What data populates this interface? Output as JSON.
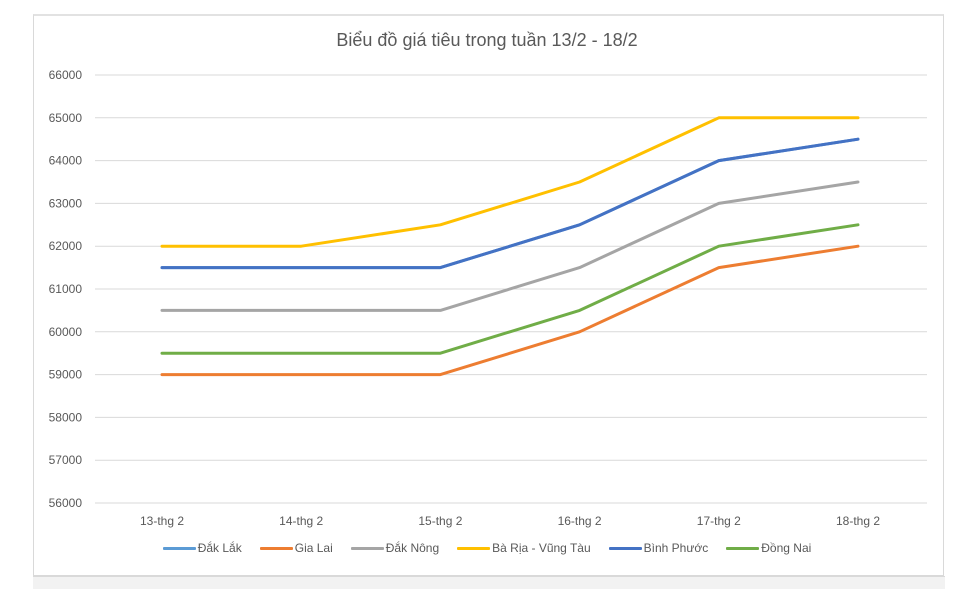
{
  "chart_data": {
    "type": "line",
    "title": "Biểu đồ giá tiêu trong tuần 13/2 - 18/2",
    "xlabel": "",
    "ylabel": "",
    "categories": [
      "13-thg 2",
      "14-thg 2",
      "15-thg 2",
      "16-thg 2",
      "17-thg 2",
      "18-thg 2"
    ],
    "ylim": [
      56000,
      66000
    ],
    "yticks": [
      66000,
      65000,
      64000,
      63000,
      62000,
      61000,
      60000,
      59000,
      58000,
      57000,
      56000
    ],
    "grid": true,
    "legend_position": "bottom",
    "series": [
      {
        "name": "Đắk Lắk",
        "color": "#5b9bd5",
        "values": [
          61500,
          61500,
          61500,
          62500,
          64000,
          64500
        ]
      },
      {
        "name": "Gia Lai",
        "color": "#ed7d31",
        "values": [
          59000,
          59000,
          59000,
          60000,
          61500,
          62000
        ]
      },
      {
        "name": "Đắk Nông",
        "color": "#a5a5a5",
        "values": [
          60500,
          60500,
          60500,
          61500,
          63000,
          63500
        ]
      },
      {
        "name": "Bà Rịa - Vũng Tàu",
        "color": "#ffc000",
        "values": [
          62000,
          62000,
          62500,
          63500,
          65000,
          65000
        ]
      },
      {
        "name": "Bình Phước",
        "color": "#4472c4",
        "values": [
          61500,
          61500,
          61500,
          62500,
          64000,
          64500
        ]
      },
      {
        "name": "Đồng Nai",
        "color": "#70ad47",
        "values": [
          59500,
          59500,
          59500,
          60500,
          62000,
          62500
        ]
      }
    ]
  }
}
